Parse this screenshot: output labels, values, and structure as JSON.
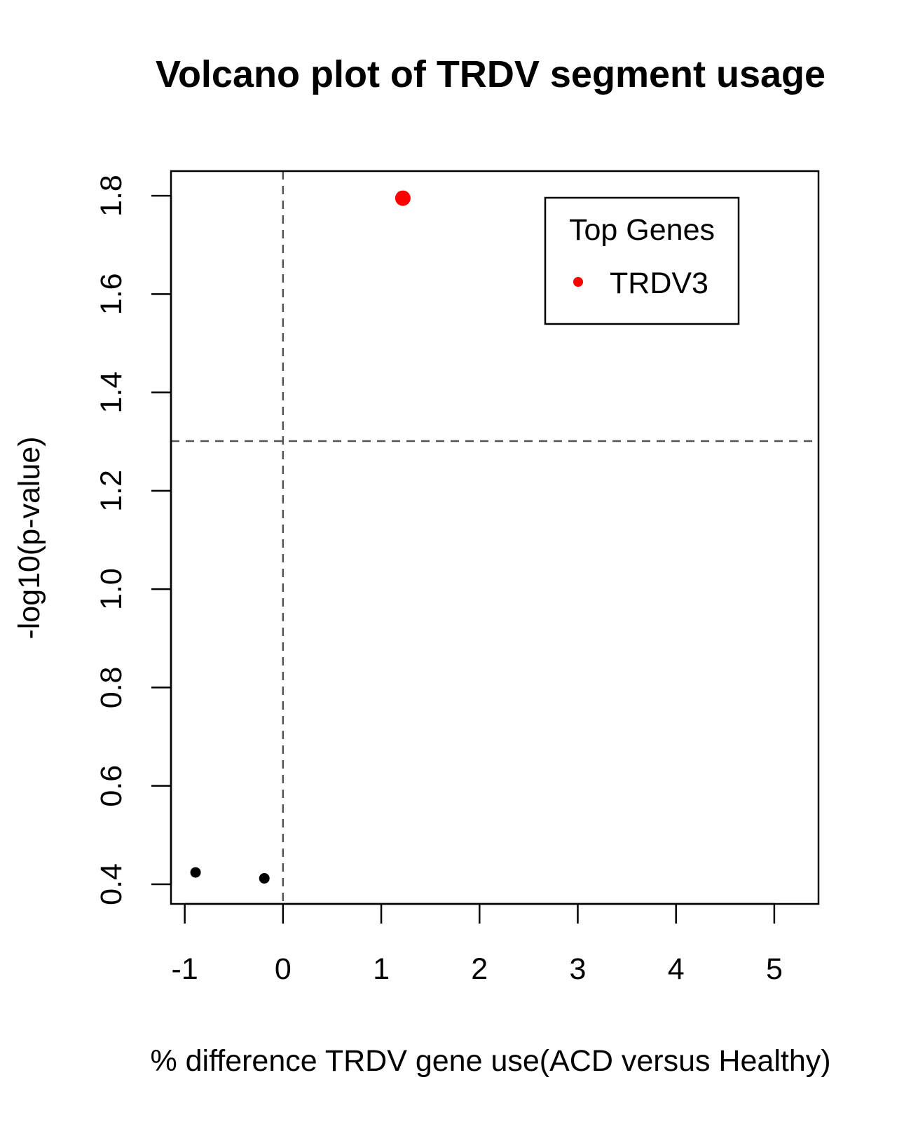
{
  "chart_data": {
    "type": "scatter",
    "title": "Volcano plot of TRDV segment usage",
    "xlabel": "% difference TRDV gene use(ACD versus Healthy)",
    "ylabel": "-log10(p-value)",
    "xlim": [
      -1.14,
      5.45
    ],
    "ylim": [
      0.36,
      1.85
    ],
    "x_ticks": [
      -1,
      0,
      1,
      2,
      3,
      4,
      5
    ],
    "y_ticks": [
      0.4,
      0.6,
      0.8,
      1.0,
      1.2,
      1.4,
      1.6,
      1.8
    ],
    "x_tick_labels": [
      "-1",
      "0",
      "1",
      "2",
      "3",
      "4",
      "5"
    ],
    "y_tick_labels": [
      "0.4",
      "0.6",
      "0.8",
      "1.0",
      "1.2",
      "1.4",
      "1.6",
      "1.8"
    ],
    "points": [
      {
        "x": -0.89,
        "y": 0.424,
        "color": "#000000",
        "highlight": false
      },
      {
        "x": -0.19,
        "y": 0.412,
        "color": "#000000",
        "highlight": false
      },
      {
        "x": 1.22,
        "y": 1.795,
        "color": "#ff0000",
        "highlight": true
      }
    ],
    "reference_lines": {
      "vertical_x": 0,
      "horizontal_y": 1.301
    },
    "grid": false,
    "legend": {
      "title": "Top Genes",
      "placement": "top-right",
      "entries": [
        {
          "label": "TRDV3",
          "color": "#ff0000"
        }
      ]
    }
  }
}
